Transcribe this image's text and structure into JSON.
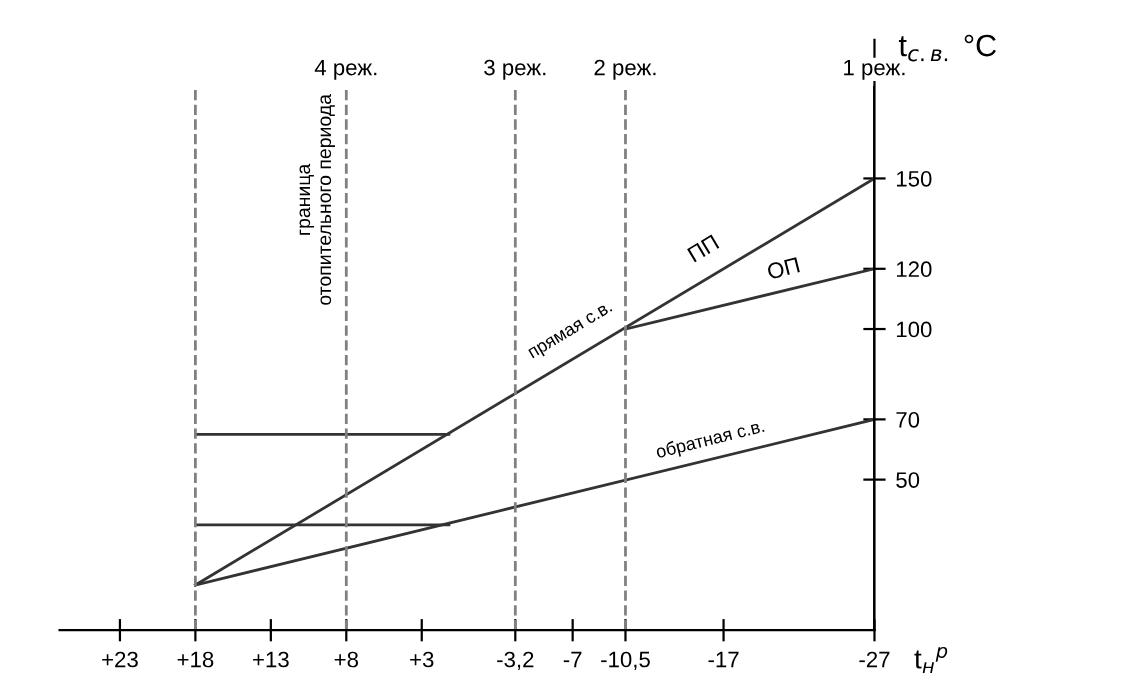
{
  "chart_data": {
    "type": "line",
    "xlabel": "t$_{н}$$^{р}$",
    "ylabel": "t$_{с.в.}$ °C",
    "xlim": [
      27,
      -27
    ],
    "ylim": [
      0,
      196
    ],
    "xticks": [
      {
        "value": 23,
        "label": "+23"
      },
      {
        "value": 18,
        "label": "+18"
      },
      {
        "value": 13,
        "label": "+13"
      },
      {
        "value": 8,
        "label": "+8"
      },
      {
        "value": 3,
        "label": "+3"
      },
      {
        "value": -3.2,
        "label": "-3,2"
      },
      -7,
      {
        "value": -10.5,
        "label": "-10,5"
      },
      -17,
      -27
    ],
    "yticks": [
      50,
      70,
      100,
      120,
      150
    ],
    "series": [
      {
        "color": "#333333",
        "x": [
          18,
          -27
        ],
        "values": [
          15,
          150
        ]
      },
      {
        "color": "#333333",
        "x": [
          -10.5,
          -27
        ],
        "values": [
          100,
          120
        ]
      },
      {
        "color": "#333333",
        "x": [
          18,
          -27
        ],
        "values": [
          15,
          70
        ]
      },
      {
        "color": "#333333",
        "x": [
          18,
          1.2
        ],
        "values": [
          65,
          65
        ]
      },
      {
        "color": "#333333",
        "x": [
          18,
          1.2
        ],
        "values": [
          35,
          35
        ]
      }
    ],
    "ref_lines": [
      {
        "axis": "x",
        "value": 18,
        "label": null,
        "color": "#808080",
        "line_style": "dashed"
      },
      {
        "axis": "x",
        "value": 8,
        "label": "4 реж.",
        "color": "#808080",
        "line_style": "dashed"
      },
      {
        "axis": "x",
        "value": -3.2,
        "label": "3 реж.",
        "color": "#808080",
        "line_style": "dashed"
      },
      {
        "axis": "x",
        "value": -10.5,
        "label": "2 реж.",
        "color": "#808080",
        "line_style": "dashed"
      },
      {
        "axis": "x",
        "value": -27,
        "label": "1 реж.",
        "color": "#000000",
        "line_style": "solid"
      }
    ],
    "annotations": [
      "граница\nотопительного периода",
      "прямая с.в.",
      "ПП",
      "ОП",
      "обратная с.в."
    ],
    "grid": false,
    "marker": "none",
    "line_style": "solid"
  }
}
